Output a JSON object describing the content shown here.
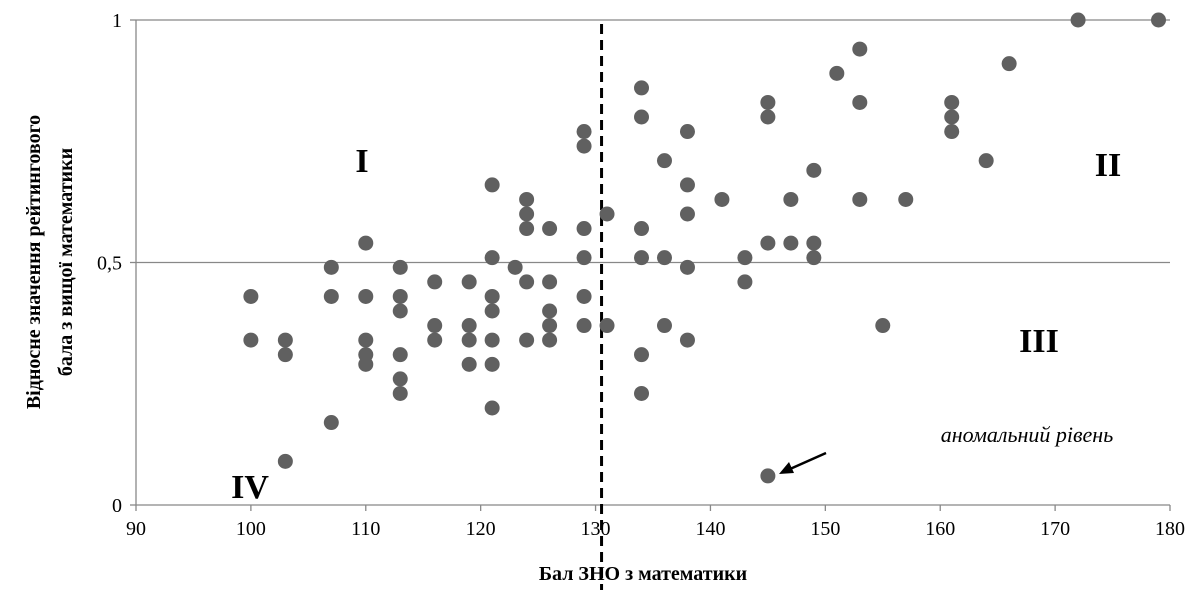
{
  "chart_data": {
    "type": "scatter",
    "xlabel": "Бал ЗНО з математики",
    "ylabel_line1": "Відносне значення рейтингового",
    "ylabel_line2": "бала з вищої математики",
    "xlim": [
      90,
      180
    ],
    "ylim": [
      0,
      1
    ],
    "x_ticks": [
      "90",
      "100",
      "110",
      "120",
      "130",
      "140",
      "150",
      "160",
      "170",
      "180"
    ],
    "y_ticks": [
      "0",
      "0,5",
      "1"
    ],
    "grid": "horizontal",
    "threshold_x": 130,
    "point_color": "#606060",
    "quadrant_labels": [
      "I",
      "II",
      "III",
      "IV"
    ],
    "annotation": "аномальний рівень",
    "anomaly_point": {
      "x": 145,
      "y": 0.06
    },
    "points": [
      {
        "x": 100,
        "y": 0.43
      },
      {
        "x": 100,
        "y": 0.34
      },
      {
        "x": 103,
        "y": 0.34
      },
      {
        "x": 103,
        "y": 0.31
      },
      {
        "x": 103,
        "y": 0.09
      },
      {
        "x": 107,
        "y": 0.49
      },
      {
        "x": 107,
        "y": 0.43
      },
      {
        "x": 107,
        "y": 0.17
      },
      {
        "x": 110,
        "y": 0.54
      },
      {
        "x": 110,
        "y": 0.43
      },
      {
        "x": 110,
        "y": 0.34
      },
      {
        "x": 110,
        "y": 0.31
      },
      {
        "x": 110,
        "y": 0.29
      },
      {
        "x": 113,
        "y": 0.49
      },
      {
        "x": 113,
        "y": 0.43
      },
      {
        "x": 113,
        "y": 0.4
      },
      {
        "x": 113,
        "y": 0.31
      },
      {
        "x": 113,
        "y": 0.26
      },
      {
        "x": 113,
        "y": 0.23
      },
      {
        "x": 116,
        "y": 0.46
      },
      {
        "x": 116,
        "y": 0.37
      },
      {
        "x": 116,
        "y": 0.34
      },
      {
        "x": 119,
        "y": 0.46
      },
      {
        "x": 119,
        "y": 0.37
      },
      {
        "x": 119,
        "y": 0.34
      },
      {
        "x": 119,
        "y": 0.29
      },
      {
        "x": 121,
        "y": 0.66
      },
      {
        "x": 121,
        "y": 0.51
      },
      {
        "x": 121,
        "y": 0.43
      },
      {
        "x": 121,
        "y": 0.4
      },
      {
        "x": 121,
        "y": 0.34
      },
      {
        "x": 121,
        "y": 0.29
      },
      {
        "x": 121,
        "y": 0.2
      },
      {
        "x": 123,
        "y": 0.49
      },
      {
        "x": 124,
        "y": 0.63
      },
      {
        "x": 124,
        "y": 0.6
      },
      {
        "x": 124,
        "y": 0.57
      },
      {
        "x": 124,
        "y": 0.46
      },
      {
        "x": 124,
        "y": 0.34
      },
      {
        "x": 126,
        "y": 0.57
      },
      {
        "x": 126,
        "y": 0.46
      },
      {
        "x": 126,
        "y": 0.4
      },
      {
        "x": 126,
        "y": 0.37
      },
      {
        "x": 126,
        "y": 0.34
      },
      {
        "x": 129,
        "y": 0.77
      },
      {
        "x": 129,
        "y": 0.74
      },
      {
        "x": 129,
        "y": 0.57
      },
      {
        "x": 129,
        "y": 0.51
      },
      {
        "x": 129,
        "y": 0.43
      },
      {
        "x": 129,
        "y": 0.37
      },
      {
        "x": 131,
        "y": 0.6
      },
      {
        "x": 131,
        "y": 0.37
      },
      {
        "x": 134,
        "y": 0.86
      },
      {
        "x": 134,
        "y": 0.8
      },
      {
        "x": 134,
        "y": 0.57
      },
      {
        "x": 134,
        "y": 0.51
      },
      {
        "x": 134,
        "y": 0.31
      },
      {
        "x": 134,
        "y": 0.23
      },
      {
        "x": 136,
        "y": 0.71
      },
      {
        "x": 136,
        "y": 0.51
      },
      {
        "x": 136,
        "y": 0.37
      },
      {
        "x": 138,
        "y": 0.77
      },
      {
        "x": 138,
        "y": 0.66
      },
      {
        "x": 138,
        "y": 0.6
      },
      {
        "x": 138,
        "y": 0.49
      },
      {
        "x": 138,
        "y": 0.34
      },
      {
        "x": 141,
        "y": 0.63
      },
      {
        "x": 143,
        "y": 0.51
      },
      {
        "x": 143,
        "y": 0.46
      },
      {
        "x": 145,
        "y": 0.83
      },
      {
        "x": 145,
        "y": 0.8
      },
      {
        "x": 145,
        "y": 0.54
      },
      {
        "x": 145,
        "y": 0.06
      },
      {
        "x": 147,
        "y": 0.63
      },
      {
        "x": 147,
        "y": 0.54
      },
      {
        "x": 149,
        "y": 0.69
      },
      {
        "x": 149,
        "y": 0.54
      },
      {
        "x": 149,
        "y": 0.51
      },
      {
        "x": 151,
        "y": 0.89
      },
      {
        "x": 153,
        "y": 0.94
      },
      {
        "x": 153,
        "y": 0.83
      },
      {
        "x": 153,
        "y": 0.63
      },
      {
        "x": 155,
        "y": 0.37
      },
      {
        "x": 157,
        "y": 0.63
      },
      {
        "x": 161,
        "y": 0.83
      },
      {
        "x": 161,
        "y": 0.8
      },
      {
        "x": 161,
        "y": 0.77
      },
      {
        "x": 164,
        "y": 0.71
      },
      {
        "x": 166,
        "y": 0.91
      },
      {
        "x": 172,
        "y": 1.0
      },
      {
        "x": 179,
        "y": 1.0
      }
    ]
  }
}
